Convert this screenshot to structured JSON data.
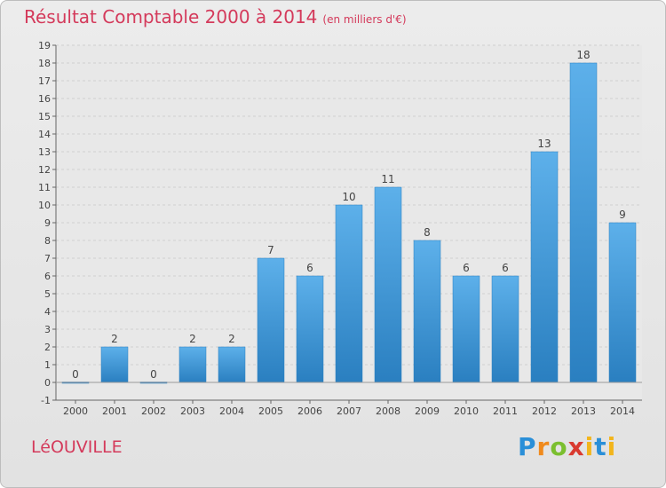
{
  "header": {
    "title": "Résultat Comptable 2000 à 2014",
    "subtitle": "(en milliers d'€)"
  },
  "footer": {
    "town": "LéOUVILLE",
    "logo": "Proxiti"
  },
  "colors": {
    "bar": "#3d97db",
    "bar_dark": "#2a7fc0",
    "title": "#d43a5b"
  },
  "chart_data": {
    "type": "bar",
    "categories": [
      "2000",
      "2001",
      "2002",
      "2003",
      "2004",
      "2005",
      "2006",
      "2007",
      "2008",
      "2009",
      "2010",
      "2011",
      "2012",
      "2013",
      "2014"
    ],
    "values": [
      0,
      2,
      0,
      2,
      2,
      7,
      6,
      10,
      11,
      8,
      6,
      6,
      13,
      18,
      9
    ],
    "ylim": [
      -1,
      19
    ],
    "yticks": [
      -1,
      0,
      1,
      2,
      3,
      4,
      5,
      6,
      7,
      8,
      9,
      10,
      11,
      12,
      13,
      14,
      15,
      16,
      17,
      18,
      19
    ],
    "ytick_labels": [
      "-1",
      "0",
      "1",
      "2",
      "3",
      "4",
      "5",
      "6",
      "7",
      "8",
      "9",
      "10",
      "11",
      "12",
      "13",
      "14",
      "15",
      "16",
      "17",
      "18",
      "19"
    ],
    "grid": true
  }
}
